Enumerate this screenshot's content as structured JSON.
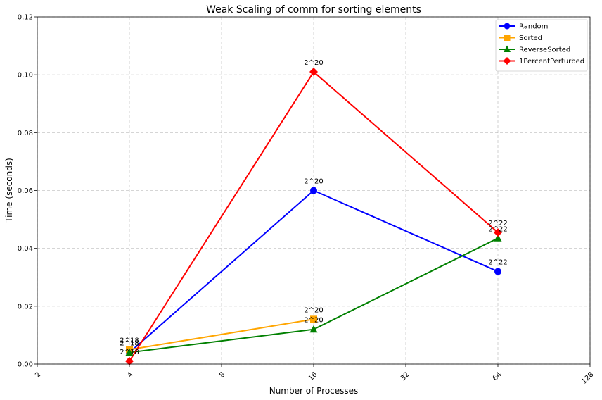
{
  "chart_data": {
    "type": "line",
    "title": "Weak Scaling of comm for sorting elements",
    "xlabel": "Number of Processes",
    "ylabel": "Time (seconds)",
    "x_scale": "log2",
    "x_ticks": [
      2,
      4,
      8,
      16,
      32,
      64,
      128
    ],
    "x_tick_labels": [
      "2",
      "4",
      "8",
      "16",
      "32",
      "64",
      "128"
    ],
    "xlim": [
      2,
      128
    ],
    "ylim": [
      0,
      0.12
    ],
    "y_ticks": [
      0.0,
      0.02,
      0.04,
      0.06,
      0.08,
      0.1,
      0.12
    ],
    "y_tick_labels": [
      "0.00",
      "0.02",
      "0.04",
      "0.06",
      "0.08",
      "0.10",
      "0.12"
    ],
    "grid": true,
    "legend_position": "top-right",
    "x": [
      4,
      16,
      64
    ],
    "series": [
      {
        "name": "Random",
        "color": "#0000ff",
        "marker": "circle",
        "values": [
          0.004,
          0.06,
          0.032
        ],
        "point_labels": [
          "2^18",
          "2^20",
          "2^22"
        ]
      },
      {
        "name": "Sorted",
        "color": "#ffa500",
        "marker": "square",
        "values": [
          0.005,
          0.0155,
          null
        ],
        "point_labels": [
          "2^18",
          "2^20",
          ""
        ]
      },
      {
        "name": "ReverseSorted",
        "color": "#008000",
        "marker": "triangle",
        "values": [
          0.004,
          0.012,
          0.0435
        ],
        "point_labels": [
          "2^18",
          "2^20",
          "2^22"
        ]
      },
      {
        "name": "1PercentPerturbed",
        "color": "#ff0000",
        "marker": "diamond",
        "values": [
          0.001,
          0.101,
          0.0455
        ],
        "point_labels": [
          "2^18",
          "2^20",
          "2^22"
        ]
      }
    ]
  }
}
